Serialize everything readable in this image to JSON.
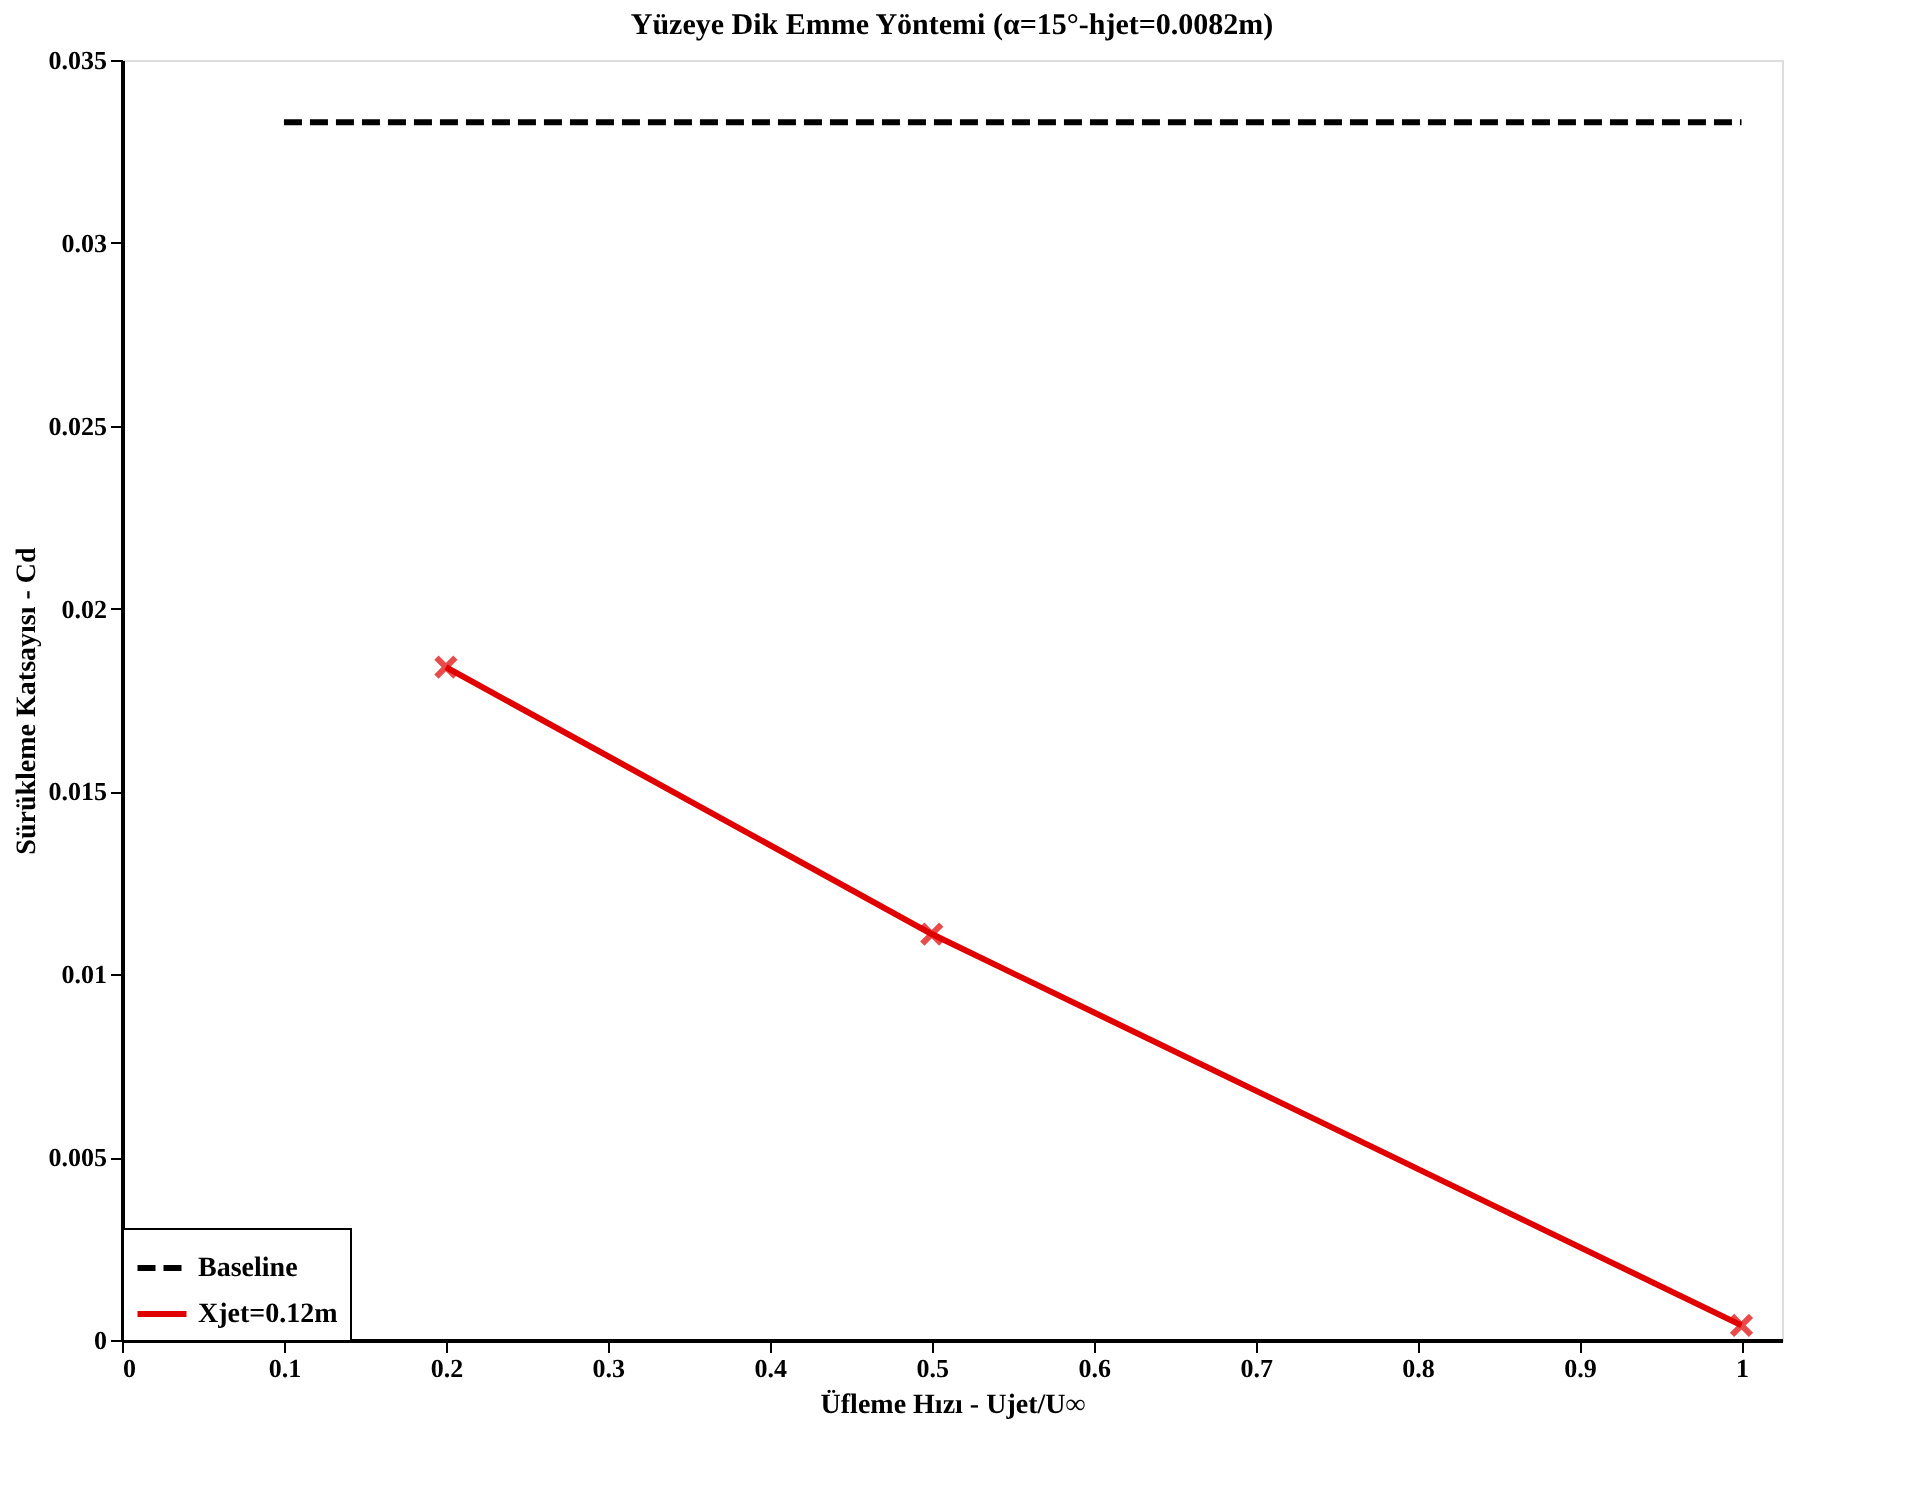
{
  "chart_data": {
    "type": "line",
    "title": "Yüzeye Dik Emme Yöntemi (α=15°-hjet=0.0082m)",
    "xlabel": "Üfleme Hızı - Ujet/U∞",
    "ylabel": "Sürükleme Katsayısı - Cd",
    "xlim": [
      0,
      1.025
    ],
    "xticks": [
      0,
      0.1,
      0.2,
      0.3,
      0.4,
      0.5,
      0.6,
      0.7,
      0.8,
      0.9,
      1
    ],
    "ylim": [
      0,
      0.035
    ],
    "yticks": [
      0,
      0.005,
      0.01,
      0.015,
      0.02,
      0.025,
      0.03,
      0.035
    ],
    "grid": false,
    "legend": "bottom left",
    "series": [
      {
        "name": "Baseline",
        "color": "#000000",
        "x": [
          0.1,
          1.0
        ],
        "values": [
          0.0333,
          0.0333
        ],
        "line_style": "dashed",
        "marker": "none"
      },
      {
        "name": "Xjet=0.12m",
        "color": "#e00000",
        "x": [
          0.2,
          0.5,
          1.0
        ],
        "values": [
          0.0184,
          0.0111,
          0.0004
        ],
        "line_style": "solid",
        "marker": "cross"
      }
    ]
  }
}
